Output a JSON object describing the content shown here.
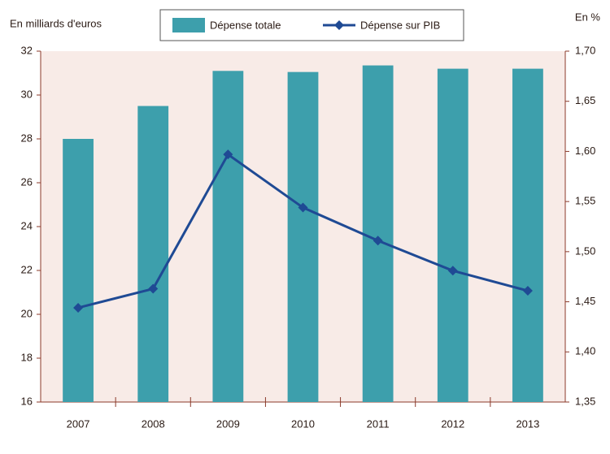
{
  "chart_data": {
    "type": "bar-line",
    "y_label": "En milliards d'euros",
    "y2_label": "En %",
    "categories": [
      "2007",
      "2008",
      "2009",
      "2010",
      "2011",
      "2012",
      "2013"
    ],
    "series": [
      {
        "name": "Dépense totale",
        "type": "bar",
        "color": "#3d9fac",
        "values": [
          28.0,
          29.5,
          31.1,
          31.05,
          31.35,
          31.2,
          31.2
        ]
      },
      {
        "name": "Dépense sur PIB",
        "type": "line",
        "axis": "y2",
        "color": "#1f4a94",
        "values": [
          1.444,
          1.463,
          1.597,
          1.544,
          1.511,
          1.481,
          1.461
        ]
      }
    ],
    "ylim": [
      16,
      32
    ],
    "yticks": [
      16,
      18,
      20,
      22,
      24,
      26,
      28,
      30,
      32
    ],
    "y2lim": [
      1.35,
      1.7
    ],
    "y2ticks": [
      {
        "value": 1.35,
        "label": "1,35"
      },
      {
        "value": 1.4,
        "label": "1,40"
      },
      {
        "value": 1.45,
        "label": "1,45"
      },
      {
        "value": 1.5,
        "label": "1,50"
      },
      {
        "value": 1.55,
        "label": "1,55"
      },
      {
        "value": 1.6,
        "label": "1,60"
      },
      {
        "value": 1.65,
        "label": "1,65"
      },
      {
        "value": 1.7,
        "label": "1,70"
      }
    ]
  }
}
